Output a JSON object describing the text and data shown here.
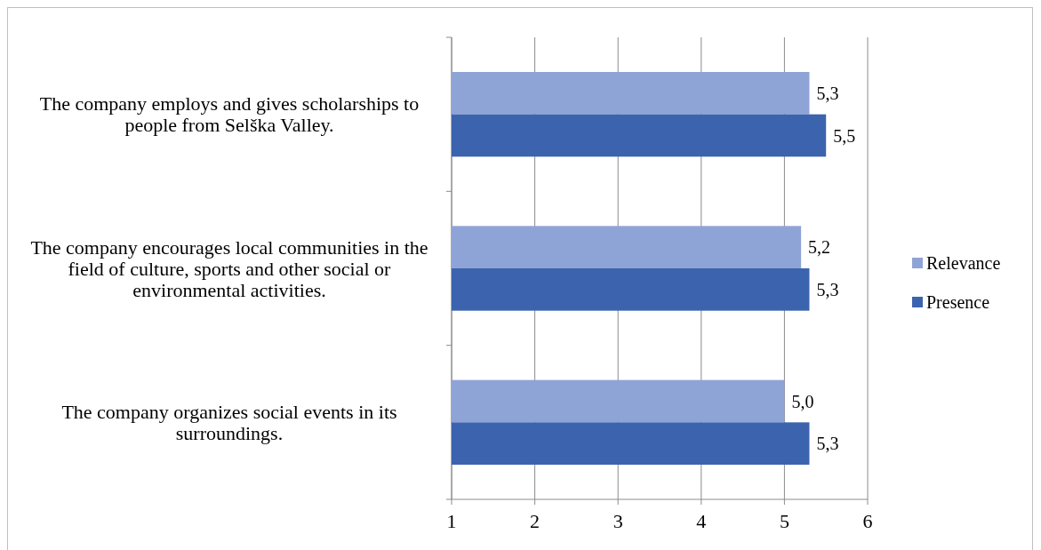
{
  "chart_data": {
    "type": "bar",
    "orientation": "horizontal",
    "categories": [
      "The company employs and gives scholarships to people from Selška Valley.",
      "The company encourages local communities in the field of culture, sports and other social or environmental activities.",
      "The company organizes social events in its surroundings."
    ],
    "series": [
      {
        "name": "Relevance",
        "color": "#8fa4d6",
        "values": [
          5.3,
          5.2,
          5.0
        ],
        "value_labels": [
          "5,3",
          "5,2",
          "5,0"
        ]
      },
      {
        "name": "Presence",
        "color": "#3c64ae",
        "values": [
          5.5,
          5.3,
          5.3
        ],
        "value_labels": [
          "5,5",
          "5,3",
          "5,3"
        ]
      }
    ],
    "xlim": [
      1,
      6
    ],
    "xticks": [
      1,
      2,
      3,
      4,
      5,
      6
    ],
    "grid": "x",
    "legend": "right"
  }
}
